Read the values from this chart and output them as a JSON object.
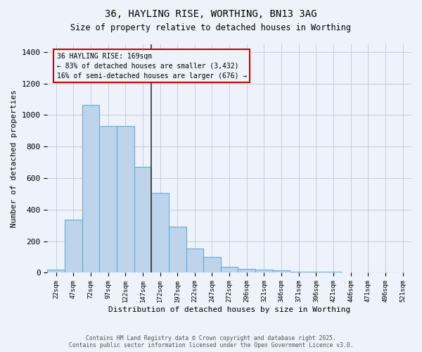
{
  "title1": "36, HAYLING RISE, WORTHING, BN13 3AG",
  "title2": "Size of property relative to detached houses in Worthing",
  "xlabel": "Distribution of detached houses by size in Worthing",
  "ylabel": "Number of detached properties",
  "categories": [
    "22sqm",
    "47sqm",
    "72sqm",
    "97sqm",
    "122sqm",
    "147sqm",
    "172sqm",
    "197sqm",
    "222sqm",
    "247sqm",
    "272sqm",
    "296sqm",
    "321sqm",
    "346sqm",
    "371sqm",
    "396sqm",
    "421sqm",
    "446sqm",
    "471sqm",
    "496sqm",
    "521sqm"
  ],
  "bar_heights": [
    20,
    335,
    1065,
    930,
    930,
    670,
    505,
    290,
    155,
    100,
    40,
    25,
    20,
    15,
    5,
    5,
    5,
    0,
    0,
    0,
    0
  ],
  "vline_pos": 6,
  "annotation_text": "36 HAYLING RISE: 169sqm\n← 83% of detached houses are smaller (3,432)\n16% of semi-detached houses are larger (676) →",
  "bar_color": "#bdd4eb",
  "bar_edge_color": "#6aaad4",
  "vline_color": "#333333",
  "ann_box_edge": "#cc0000",
  "bg_color": "#edf2fb",
  "grid_color": "#c5cede",
  "footer_text": "Contains HM Land Registry data © Crown copyright and database right 2025.\nContains public sector information licensed under the Open Government Licence v3.0.",
  "ylim": [
    0,
    1450
  ],
  "yticks": [
    0,
    200,
    400,
    600,
    800,
    1000,
    1200,
    1400
  ]
}
